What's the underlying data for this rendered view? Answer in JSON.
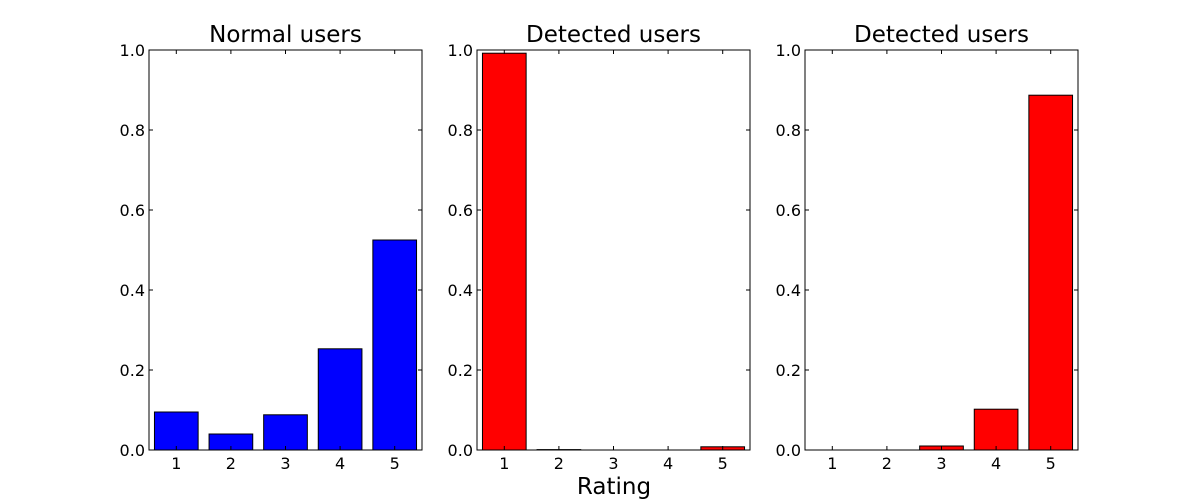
{
  "chart_data": [
    {
      "type": "bar",
      "title": "Normal users",
      "categories": [
        "1",
        "2",
        "3",
        "4",
        "5"
      ],
      "values": [
        0.095,
        0.04,
        0.088,
        0.253,
        0.525
      ],
      "ylim": [
        0,
        1.0
      ],
      "yticks": [
        "0.0",
        "0.2",
        "0.4",
        "0.6",
        "0.8",
        "1.0"
      ],
      "color": "#0000ff",
      "grid": false
    },
    {
      "type": "bar",
      "title": "Detected users",
      "categories": [
        "1",
        "2",
        "3",
        "4",
        "5"
      ],
      "values": [
        0.992,
        0.001,
        0.0,
        0.0,
        0.008
      ],
      "ylim": [
        0,
        1.0
      ],
      "yticks": [
        "0.0",
        "0.2",
        "0.4",
        "0.6",
        "0.8",
        "1.0"
      ],
      "color": "#ff0000",
      "grid": false
    },
    {
      "type": "bar",
      "title": "Detected users",
      "categories": [
        "1",
        "2",
        "3",
        "4",
        "5"
      ],
      "values": [
        0.0,
        0.0,
        0.01,
        0.102,
        0.887
      ],
      "ylim": [
        0,
        1.0
      ],
      "yticks": [
        "0.0",
        "0.2",
        "0.4",
        "0.6",
        "0.8",
        "1.0"
      ],
      "color": "#ff0000",
      "grid": false
    }
  ],
  "xlabel": "Rating"
}
